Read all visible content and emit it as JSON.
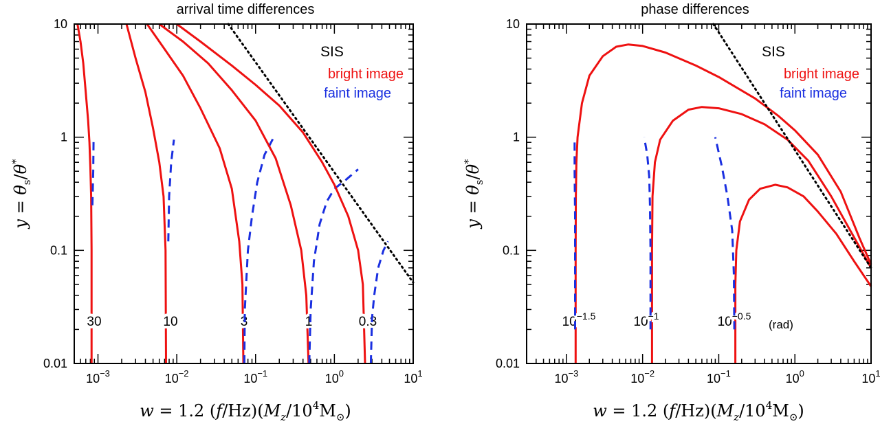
{
  "chart_data": [
    {
      "type": "line",
      "title": "arrival time differences",
      "xlabel": "w = 1.2 (f/Hz)(M_z/10^4 M_⊙)",
      "ylabel": "y = θ_s/θ_*",
      "xscale": "log",
      "yscale": "log",
      "xlim": [
        0.0005,
        10
      ],
      "ylim": [
        0.01,
        10
      ],
      "x_ticks": [
        {
          "v": 0.001,
          "base": "10",
          "exp": "−3"
        },
        {
          "v": 0.01,
          "base": "10",
          "exp": "−2"
        },
        {
          "v": 0.1,
          "base": "10",
          "exp": "−1"
        },
        {
          "v": 1,
          "base": "10",
          "exp": "0"
        },
        {
          "v": 10,
          "base": "10",
          "exp": "1"
        }
      ],
      "y_ticks": [
        {
          "v": 0.01,
          "label": "0.01"
        },
        {
          "v": 0.1,
          "label": "0.1"
        },
        {
          "v": 1,
          "label": "1"
        },
        {
          "v": 10,
          "label": "10"
        }
      ],
      "legend": {
        "title": "SIS",
        "entries": [
          {
            "label": "bright image",
            "color": "#ee1111"
          },
          {
            "label": "faint image",
            "color": "#1a2fe0"
          }
        ],
        "placement": "top-right"
      },
      "series": [
        {
          "kind": "bright",
          "label": "30",
          "points": [
            [
              0.00055,
              10
            ],
            [
              0.0006,
              7
            ],
            [
              0.00065,
              4.5
            ],
            [
              0.0007,
              2.5
            ],
            [
              0.00075,
              1.4
            ],
            [
              0.00078,
              0.9
            ],
            [
              0.0008,
              0.55
            ],
            [
              0.00082,
              0.3
            ],
            [
              0.00083,
              0.1
            ],
            [
              0.00083,
              0.01
            ]
          ]
        },
        {
          "kind": "faint",
          "label": "",
          "points": [
            [
              0.00085,
              0.25
            ],
            [
              0.00087,
              0.5
            ],
            [
              0.00088,
              0.95
            ]
          ]
        },
        {
          "kind": "bright",
          "label": "10",
          "points": [
            [
              0.0023,
              10
            ],
            [
              0.003,
              5
            ],
            [
              0.004,
              2.5
            ],
            [
              0.005,
              1.2
            ],
            [
              0.006,
              0.6
            ],
            [
              0.0068,
              0.3
            ],
            [
              0.0072,
              0.1
            ],
            [
              0.0073,
              0.01
            ]
          ]
        },
        {
          "kind": "faint",
          "label": "",
          "points": [
            [
              0.0078,
              0.12
            ],
            [
              0.008,
              0.3
            ],
            [
              0.0085,
              0.6
            ],
            [
              0.0092,
              0.95
            ]
          ]
        },
        {
          "kind": "bright",
          "label": "3",
          "points": [
            [
              0.0042,
              10
            ],
            [
              0.007,
              6
            ],
            [
              0.012,
              3.5
            ],
            [
              0.02,
              1.8
            ],
            [
              0.035,
              0.8
            ],
            [
              0.05,
              0.35
            ],
            [
              0.062,
              0.12
            ],
            [
              0.068,
              0.05
            ],
            [
              0.07,
              0.01
            ]
          ]
        },
        {
          "kind": "faint",
          "label": "",
          "points": [
            [
              0.072,
              0.01
            ],
            [
              0.073,
              0.03
            ],
            [
              0.08,
              0.1
            ],
            [
              0.09,
              0.2
            ],
            [
              0.105,
              0.4
            ],
            [
              0.13,
              0.7
            ],
            [
              0.17,
              1.0
            ]
          ]
        },
        {
          "kind": "bright",
          "label": "1",
          "points": [
            [
              0.006,
              10
            ],
            [
              0.012,
              7
            ],
            [
              0.025,
              4.5
            ],
            [
              0.05,
              2.6
            ],
            [
              0.1,
              1.4
            ],
            [
              0.18,
              0.65
            ],
            [
              0.28,
              0.25
            ],
            [
              0.38,
              0.1
            ],
            [
              0.44,
              0.04
            ],
            [
              0.47,
              0.01
            ]
          ]
        },
        {
          "kind": "faint",
          "label": "",
          "points": [
            [
              0.48,
              0.01
            ],
            [
              0.5,
              0.03
            ],
            [
              0.55,
              0.08
            ],
            [
              0.65,
              0.17
            ],
            [
              0.8,
              0.27
            ],
            [
              1.0,
              0.35
            ],
            [
              1.4,
              0.42
            ],
            [
              2.0,
              0.52
            ]
          ]
        },
        {
          "kind": "bright",
          "label": "0.3",
          "points": [
            [
              0.01,
              10
            ],
            [
              0.02,
              7
            ],
            [
              0.05,
              4.3
            ],
            [
              0.1,
              2.9
            ],
            [
              0.2,
              1.9
            ],
            [
              0.4,
              1.1
            ],
            [
              0.7,
              0.6
            ],
            [
              1.0,
              0.38
            ],
            [
              1.5,
              0.2
            ],
            [
              2.0,
              0.1
            ],
            [
              2.3,
              0.05
            ],
            [
              2.45,
              0.01
            ]
          ]
        },
        {
          "kind": "faint",
          "label": "",
          "points": [
            [
              2.9,
              0.01
            ],
            [
              3.0,
              0.025
            ],
            [
              3.2,
              0.04
            ],
            [
              3.6,
              0.07
            ],
            [
              4.2,
              0.1
            ],
            [
              4.8,
              0.12
            ]
          ]
        },
        {
          "kind": "asymptote",
          "label": "",
          "points": [
            [
              0.045,
              10
            ],
            [
              10,
              0.052
            ]
          ]
        }
      ]
    },
    {
      "type": "line",
      "title": "phase differences",
      "xlabel": "w = 1.2 (f/Hz)(M_z/10^4 M_⊙)",
      "ylabel": "y = θ_s/θ_*",
      "xscale": "log",
      "yscale": "log",
      "xlim": [
        0.0003,
        10
      ],
      "ylim": [
        0.01,
        10
      ],
      "x_ticks": [
        {
          "v": 0.001,
          "base": "10",
          "exp": "−3"
        },
        {
          "v": 0.01,
          "base": "10",
          "exp": "−2"
        },
        {
          "v": 0.1,
          "base": "10",
          "exp": "−1"
        },
        {
          "v": 1,
          "base": "10",
          "exp": "0"
        },
        {
          "v": 10,
          "base": "10",
          "exp": "1"
        }
      ],
      "y_ticks": [
        {
          "v": 0.01,
          "label": "0.01"
        },
        {
          "v": 0.1,
          "label": "0.1"
        },
        {
          "v": 1,
          "label": "1"
        },
        {
          "v": 10,
          "label": "10"
        }
      ],
      "legend": {
        "title": "SIS",
        "entries": [
          {
            "label": "bright image",
            "color": "#ee1111"
          },
          {
            "label": "faint image",
            "color": "#1a2fe0"
          }
        ],
        "placement": "top-right"
      },
      "series": [
        {
          "kind": "bright",
          "label": "10^{-1.5}",
          "points": [
            [
              0.00132,
              0.01
            ],
            [
              0.00132,
              0.1
            ],
            [
              0.00133,
              0.3
            ],
            [
              0.00135,
              0.6
            ],
            [
              0.0014,
              1.0
            ],
            [
              0.0016,
              2.0
            ],
            [
              0.002,
              3.5
            ],
            [
              0.003,
              5.2
            ],
            [
              0.0045,
              6.3
            ],
            [
              0.0065,
              6.6
            ],
            [
              0.01,
              6.4
            ],
            [
              0.02,
              5.6
            ],
            [
              0.05,
              4.3
            ],
            [
              0.1,
              3.4
            ],
            [
              0.3,
              2.2
            ],
            [
              0.6,
              1.55
            ],
            [
              1,
              1.15
            ],
            [
              2,
              0.7
            ],
            [
              4,
              0.33
            ],
            [
              7,
              0.13
            ],
            [
              10,
              0.075
            ]
          ]
        },
        {
          "kind": "faint",
          "label": "",
          "points": [
            [
              0.0013,
              0.02
            ],
            [
              0.0013,
              0.2
            ],
            [
              0.00128,
              0.5
            ],
            [
              0.00128,
              0.95
            ]
          ]
        },
        {
          "kind": "bright",
          "label": "10^{-1}",
          "points": [
            [
              0.0133,
              0.01
            ],
            [
              0.0133,
              0.1
            ],
            [
              0.0135,
              0.3
            ],
            [
              0.0145,
              0.6
            ],
            [
              0.017,
              0.95
            ],
            [
              0.025,
              1.4
            ],
            [
              0.04,
              1.75
            ],
            [
              0.06,
              1.85
            ],
            [
              0.1,
              1.8
            ],
            [
              0.2,
              1.6
            ],
            [
              0.4,
              1.3
            ],
            [
              0.8,
              0.95
            ],
            [
              1.5,
              0.62
            ],
            [
              3,
              0.3
            ],
            [
              6,
              0.13
            ],
            [
              10,
              0.07
            ]
          ]
        },
        {
          "kind": "faint",
          "label": "",
          "points": [
            [
              0.0127,
              0.02
            ],
            [
              0.0127,
              0.1
            ],
            [
              0.0125,
              0.25
            ],
            [
              0.0122,
              0.45
            ],
            [
              0.0115,
              0.7
            ],
            [
              0.0105,
              1.0
            ]
          ]
        },
        {
          "kind": "bright",
          "label": "10^{-0.5}",
          "points": [
            [
              0.165,
              0.01
            ],
            [
              0.165,
              0.05
            ],
            [
              0.17,
              0.1
            ],
            [
              0.19,
              0.18
            ],
            [
              0.25,
              0.28
            ],
            [
              0.35,
              0.35
            ],
            [
              0.55,
              0.38
            ],
            [
              0.8,
              0.36
            ],
            [
              1.3,
              0.3
            ],
            [
              2,
              0.22
            ],
            [
              3.5,
              0.14
            ],
            [
              6,
              0.08
            ],
            [
              10,
              0.048
            ]
          ]
        },
        {
          "kind": "faint",
          "label": "",
          "points": [
            [
              0.16,
              0.02
            ],
            [
              0.158,
              0.06
            ],
            [
              0.15,
              0.15
            ],
            [
              0.13,
              0.3
            ],
            [
              0.11,
              0.55
            ],
            [
              0.09,
              1.0
            ]
          ]
        },
        {
          "kind": "asymptote",
          "label": "",
          "points": [
            [
              0.085,
              10
            ],
            [
              10,
              0.07
            ]
          ]
        }
      ],
      "annotation": "(rad)"
    }
  ]
}
